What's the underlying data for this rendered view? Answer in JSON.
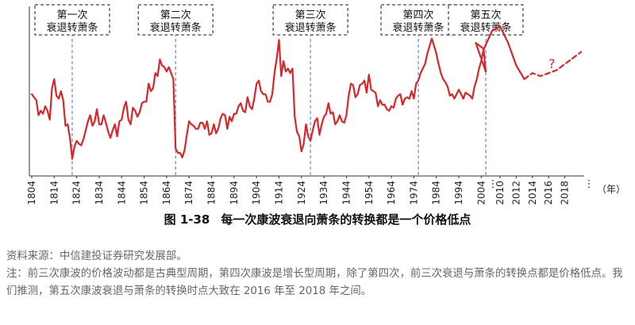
{
  "figure": {
    "number": "图 1-38",
    "title": "每一次康波衰退向萧条的转换都是一个价格低点"
  },
  "notes": {
    "source": "资料来源：中信建投证券研究发展部。",
    "note": "注：前三次康波的价格波动都是古典型周期，第四次康波是增长型周期，除了第四次，前三次衰退与萧条的转换点都是价格低点。我们推测，第五次康波衰退与萧条的转换时点大致在 2016 年至 2018 年之间。"
  },
  "colors": {
    "series": "#d8262a",
    "box": "#444444",
    "divider": "#5b8fc9",
    "axis": "#333333"
  },
  "chart_data": {
    "type": "line",
    "xlabel": "（年）",
    "ylabel": "",
    "xlim": [
      1804,
      2020
    ],
    "x_ticks_left": [
      "1804",
      "1814",
      "1824",
      "1834",
      "1844",
      "1854",
      "1864",
      "1874",
      "1884",
      "1894",
      "1904",
      "1914",
      "1924",
      "1934",
      "1944",
      "1954",
      "1964",
      "1974",
      "1984",
      "1994",
      "2004"
    ],
    "x_ticks_right": [
      "2010",
      "2012",
      "2014",
      "2016",
      "2018"
    ],
    "ellipsis": "⋮",
    "ylim": [
      0,
      100
    ],
    "grid": false,
    "question_mark": "?",
    "transitions": [
      {
        "year": 1822,
        "label_line1": "第一次",
        "label_line2": "衰退转萧条"
      },
      {
        "year": 1868,
        "label_line1": "第二次",
        "label_line2": "衰退转萧条"
      },
      {
        "year": 1928,
        "label_line1": "第三次",
        "label_line2": "衰退转萧条"
      },
      {
        "year": 1976,
        "label_line1": "第四次",
        "label_line2": "衰退转萧条"
      },
      {
        "year": 2006,
        "label_line1": "第五次",
        "label_line2": "衰退转萧条"
      }
    ],
    "series": [
      {
        "style": "solid",
        "points": [
          [
            1804,
            48
          ],
          [
            1806,
            44
          ],
          [
            1807,
            34
          ],
          [
            1808,
            37
          ],
          [
            1809,
            35
          ],
          [
            1810,
            40
          ],
          [
            1811,
            37
          ],
          [
            1812,
            31
          ],
          [
            1813,
            52
          ],
          [
            1814,
            58
          ],
          [
            1815,
            47
          ],
          [
            1816,
            45
          ],
          [
            1817,
            50
          ],
          [
            1818,
            44
          ],
          [
            1819,
            27
          ],
          [
            1820,
            28
          ],
          [
            1821,
            19
          ],
          [
            1822,
            5
          ],
          [
            1823,
            13
          ],
          [
            1824,
            17
          ],
          [
            1825,
            15
          ],
          [
            1826,
            14
          ],
          [
            1827,
            18
          ],
          [
            1828,
            24
          ],
          [
            1829,
            30
          ],
          [
            1830,
            34
          ],
          [
            1831,
            27
          ],
          [
            1832,
            30
          ],
          [
            1833,
            38
          ],
          [
            1834,
            28
          ],
          [
            1835,
            28
          ],
          [
            1836,
            34
          ],
          [
            1837,
            29
          ],
          [
            1838,
            23
          ],
          [
            1839,
            19
          ],
          [
            1840,
            24
          ],
          [
            1841,
            28
          ],
          [
            1842,
            20
          ],
          [
            1843,
            30
          ],
          [
            1844,
            31
          ],
          [
            1845,
            39
          ],
          [
            1846,
            43
          ],
          [
            1847,
            31
          ],
          [
            1848,
            28
          ],
          [
            1849,
            39
          ],
          [
            1850,
            37
          ],
          [
            1851,
            33
          ],
          [
            1852,
            36
          ],
          [
            1853,
            42
          ],
          [
            1854,
            43
          ],
          [
            1855,
            43
          ],
          [
            1856,
            55
          ],
          [
            1857,
            50
          ],
          [
            1858,
            52
          ],
          [
            1859,
            62
          ],
          [
            1860,
            60
          ],
          [
            1861,
            71
          ],
          [
            1862,
            67
          ],
          [
            1863,
            66
          ],
          [
            1864,
            63
          ],
          [
            1865,
            66
          ],
          [
            1866,
            62
          ],
          [
            1867,
            58
          ],
          [
            1868,
            12
          ],
          [
            1869,
            9
          ],
          [
            1870,
            9
          ],
          [
            1871,
            6
          ],
          [
            1872,
            11
          ],
          [
            1873,
            21
          ],
          [
            1874,
            30
          ],
          [
            1875,
            28
          ],
          [
            1876,
            27
          ],
          [
            1877,
            25
          ],
          [
            1878,
            25
          ],
          [
            1879,
            29
          ],
          [
            1880,
            29
          ],
          [
            1881,
            25
          ],
          [
            1882,
            30
          ],
          [
            1883,
            21
          ],
          [
            1884,
            22
          ],
          [
            1885,
            28
          ],
          [
            1886,
            22
          ],
          [
            1887,
            25
          ],
          [
            1888,
            32
          ],
          [
            1889,
            35
          ],
          [
            1890,
            34
          ],
          [
            1891,
            25
          ],
          [
            1892,
            33
          ],
          [
            1893,
            30
          ],
          [
            1894,
            35
          ],
          [
            1895,
            35
          ],
          [
            1896,
            40
          ],
          [
            1897,
            42
          ],
          [
            1898,
            37
          ],
          [
            1899,
            36
          ],
          [
            1900,
            46
          ],
          [
            1901,
            40
          ],
          [
            1902,
            38
          ],
          [
            1903,
            45
          ],
          [
            1904,
            55
          ],
          [
            1905,
            57
          ],
          [
            1906,
            50
          ],
          [
            1907,
            48
          ],
          [
            1908,
            48
          ],
          [
            1909,
            43
          ],
          [
            1910,
            43
          ],
          [
            1911,
            48
          ],
          [
            1912,
            62
          ],
          [
            1913,
            72
          ],
          [
            1914,
            84
          ],
          [
            1915,
            60
          ],
          [
            1916,
            70
          ],
          [
            1917,
            63
          ],
          [
            1918,
            65
          ],
          [
            1919,
            62
          ],
          [
            1920,
            65
          ],
          [
            1921,
            33
          ],
          [
            1922,
            23
          ],
          [
            1923,
            20
          ],
          [
            1924,
            10
          ],
          [
            1925,
            15
          ],
          [
            1926,
            28
          ],
          [
            1927,
            20
          ],
          [
            1928,
            17
          ],
          [
            1929,
            24
          ],
          [
            1930,
            30
          ],
          [
            1931,
            32
          ],
          [
            1932,
            21
          ],
          [
            1933,
            28
          ],
          [
            1934,
            33
          ],
          [
            1935,
            35
          ],
          [
            1936,
            42
          ],
          [
            1937,
            35
          ],
          [
            1938,
            36
          ],
          [
            1939,
            28
          ],
          [
            1940,
            30
          ],
          [
            1941,
            34
          ],
          [
            1942,
            30
          ],
          [
            1943,
            29
          ],
          [
            1944,
            34
          ],
          [
            1945,
            47
          ],
          [
            1946,
            55
          ],
          [
            1947,
            54
          ],
          [
            1948,
            46
          ],
          [
            1949,
            48
          ],
          [
            1950,
            54
          ],
          [
            1951,
            55
          ],
          [
            1952,
            57
          ],
          [
            1953,
            49
          ],
          [
            1954,
            61
          ],
          [
            1955,
            51
          ],
          [
            1956,
            50
          ],
          [
            1957,
            49
          ],
          [
            1958,
            40
          ],
          [
            1959,
            44
          ],
          [
            1960,
            41
          ],
          [
            1961,
            41
          ],
          [
            1962,
            38
          ],
          [
            1963,
            37
          ],
          [
            1964,
            40
          ],
          [
            1965,
            39
          ],
          [
            1966,
            45
          ],
          [
            1967,
            47
          ],
          [
            1968,
            48
          ],
          [
            1969,
            41
          ],
          [
            1970,
            45
          ],
          [
            1971,
            46
          ],
          [
            1972,
            45
          ],
          [
            1973,
            50
          ],
          [
            1974,
            45
          ],
          [
            1975,
            55
          ],
          [
            1976,
            57
          ],
          [
            1977,
            62
          ],
          [
            1978,
            65
          ],
          [
            1979,
            68
          ],
          [
            1980,
            75
          ],
          [
            1981,
            80
          ],
          [
            1982,
            85
          ],
          [
            1983,
            80
          ],
          [
            1984,
            75
          ],
          [
            1985,
            68
          ],
          [
            1986,
            62
          ],
          [
            1987,
            58
          ],
          [
            1988,
            56
          ],
          [
            1989,
            53
          ],
          [
            1990,
            47
          ],
          [
            1991,
            48
          ],
          [
            1992,
            45
          ],
          [
            1993,
            48
          ],
          [
            1994,
            51
          ],
          [
            1995,
            48
          ],
          [
            1996,
            45
          ],
          [
            1997,
            49
          ],
          [
            1998,
            48
          ],
          [
            1999,
            47
          ],
          [
            2000,
            45
          ],
          [
            2001,
            53
          ],
          [
            2002,
            58
          ],
          [
            2003,
            65
          ],
          [
            2004,
            70
          ],
          [
            2005,
            78
          ],
          [
            2006,
            63
          ],
          [
            2007,
            82
          ],
          [
            2008,
            78
          ],
          [
            2009,
            90
          ],
          [
            2010,
            93
          ],
          [
            2011,
            82
          ],
          [
            2012,
            67
          ],
          [
            2013,
            58
          ]
        ]
      },
      {
        "style": "dashed",
        "points": [
          [
            2013,
            58
          ],
          [
            2014,
            62
          ],
          [
            2015,
            60
          ],
          [
            2016,
            62
          ],
          [
            2017,
            64
          ],
          [
            2018,
            68
          ],
          [
            2019,
            72
          ],
          [
            2020,
            76
          ]
        ]
      }
    ]
  }
}
